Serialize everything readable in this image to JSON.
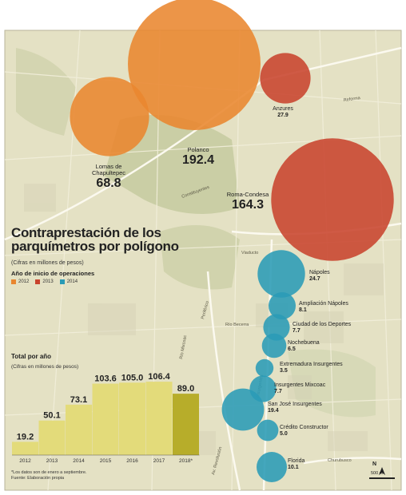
{
  "title": "Contraprestación de los parquímetros por polígono",
  "subtitle": "(Cifras en millones de pesos)",
  "legend": {
    "title": "Año de inicio de operaciones",
    "items": [
      {
        "label": "2012",
        "color": "#e9862f"
      },
      {
        "label": "2013",
        "color": "#c8432d"
      },
      {
        "label": "2014",
        "color": "#2a9bb6"
      }
    ]
  },
  "polygons": [
    {
      "name": "Polanco",
      "value": "192.4",
      "year": "2012"
    },
    {
      "name": "Lomas de Chapultepec",
      "value": "68.8",
      "year": "2012"
    },
    {
      "name": "Anzures",
      "value": "27.9",
      "year": "2013"
    },
    {
      "name": "Roma-Condesa",
      "value": "164.3",
      "year": "2013"
    },
    {
      "name": "Nápoles",
      "value": "24.7",
      "year": "2014"
    },
    {
      "name": "Ampliación Nápoles",
      "value": "8.1",
      "year": "2014"
    },
    {
      "name": "Ciudad de los Deportes",
      "value": "7.7",
      "year": "2014"
    },
    {
      "name": "Nochebuena",
      "value": "6.5",
      "year": "2014"
    },
    {
      "name": "Extremadura Insurgentes",
      "value": "3.5",
      "year": "2014"
    },
    {
      "name": "Insurgentes Mixcoac",
      "value": "7.7",
      "year": "2014"
    },
    {
      "name": "San José Insurgentes",
      "value": "19.4",
      "year": "2014"
    },
    {
      "name": "Crédito Constructor",
      "value": "5.0",
      "year": "2014"
    },
    {
      "name": "Florida",
      "value": "10.1",
      "year": "2014"
    }
  ],
  "streets": [
    "Constituyentes",
    "Reforma",
    "Viaducto",
    "Río Becerra",
    "Periférico",
    "Río Mixcoac",
    "Av. Revolución",
    "Insurgentes",
    "Churubusco"
  ],
  "chart": {
    "title": "Total por año",
    "subtitle": "(Cifras en millones de pesos)",
    "footnote": [
      "*Los datos son de enero a septiembre.",
      "Fuente: Elaboración propia"
    ]
  },
  "chart_data": {
    "type": "bar",
    "title": "Total por año",
    "categories": [
      "2012",
      "2013",
      "2014",
      "2015",
      "2016",
      "2017",
      "2018*"
    ],
    "values": [
      19.2,
      50.1,
      73.1,
      103.6,
      105.0,
      106.4,
      89.0
    ],
    "value_labels": [
      "19.2",
      "50.1",
      "73.1",
      "103.6",
      "105.0",
      "106.4",
      "89.0"
    ],
    "ylim": [
      0,
      110
    ],
    "grid": false,
    "colors": {
      "bar": "#e3db7a",
      "last_bar": "#b7ad2a"
    }
  },
  "compass": {
    "label": "N",
    "scale": "500 m"
  }
}
